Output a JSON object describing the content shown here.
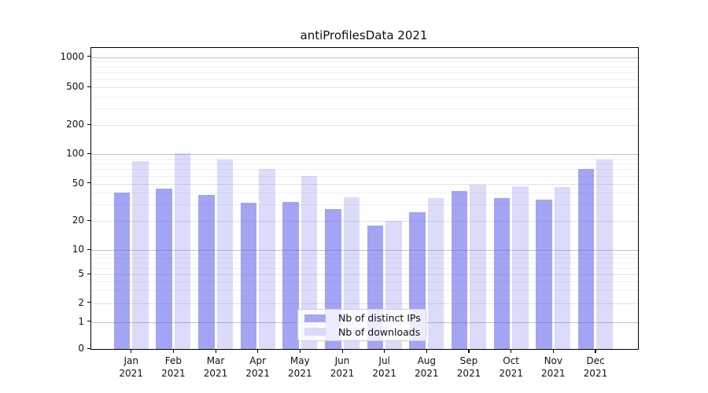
{
  "chart_data": {
    "type": "bar",
    "title": "antiProfilesData 2021",
    "categories": [
      "Jan 2021",
      "Feb 2021",
      "Mar 2021",
      "Apr 2021",
      "May 2021",
      "Jun 2021",
      "Jul 2021",
      "Aug 2021",
      "Sep 2021",
      "Oct 2021",
      "Nov 2021",
      "Dec 2021"
    ],
    "series": [
      {
        "name": "Nb of distinct IPs",
        "values": [
          40,
          44,
          38,
          31,
          32,
          27,
          18,
          25,
          42,
          35,
          34,
          70
        ],
        "bar_color": "rgba(90,90,235,0.55)",
        "legend_color": "#a8a8f2"
      },
      {
        "name": "Nb of downloads",
        "values": [
          85,
          101,
          88,
          70,
          60,
          36,
          20,
          35,
          49,
          47,
          46,
          88
        ],
        "bar_color": "rgba(90,90,235,0.22)",
        "legend_color": "#d9d9f8"
      }
    ],
    "yscale": "symlog",
    "ylim": [
      0,
      1150
    ],
    "yticks": [
      0,
      1,
      2,
      5,
      10,
      20,
      50,
      100,
      200,
      500,
      1000
    ],
    "minor_ticks": [
      3,
      4,
      6,
      7,
      8,
      9,
      30,
      40,
      60,
      70,
      80,
      90,
      300,
      400,
      600,
      700,
      800,
      900
    ],
    "grid": true,
    "legend_position": "bottom-center",
    "xlabel": "",
    "ylabel": "",
    "grid_colors": {
      "major": "#c4c4c4",
      "mid": "#e2e2e2",
      "minor": "#efefef"
    },
    "axis_color": "#000000",
    "background_color": "#ffffff"
  }
}
